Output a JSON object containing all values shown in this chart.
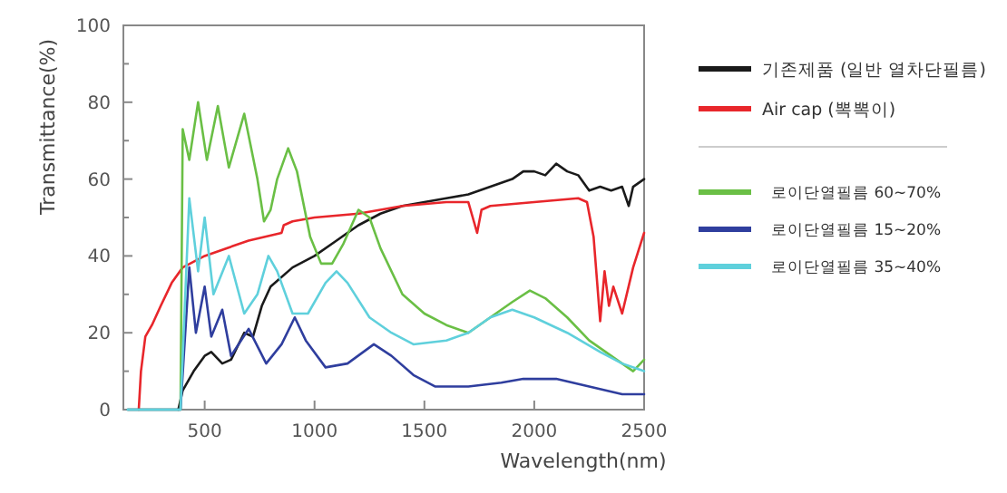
{
  "chart_data": {
    "type": "line",
    "xlabel": "Wavelength(nm)",
    "ylabel": "Transmittance(%)",
    "xlim": [
      130,
      2500
    ],
    "xticks": [
      500,
      1000,
      1500,
      2000,
      2500
    ],
    "ylim": [
      0,
      100
    ],
    "yticks": [
      0,
      {
        "value": 10,
        "label": null
      },
      20,
      {
        "value": 30,
        "label": null
      },
      40,
      {
        "value": 50,
        "label": null
      },
      60,
      {
        "value": 70,
        "label": null
      },
      80,
      {
        "value": 90,
        "label": null
      },
      100
    ],
    "grid": false,
    "legend": "right",
    "line_style": "solid",
    "series": [
      {
        "name": "기존제품 (일반 열차단필름)",
        "color": "#1a1a1a",
        "x": [
          380,
          400,
          450,
          500,
          530,
          580,
          620,
          680,
          720,
          760,
          800,
          900,
          1000,
          1100,
          1200,
          1300,
          1400,
          1500,
          1600,
          1700,
          1800,
          1900,
          1950,
          2000,
          2050,
          2100,
          2150,
          2200,
          2250,
          2300,
          2350,
          2400,
          2430,
          2450,
          2500
        ],
        "values": [
          0,
          5,
          10,
          14,
          15,
          12,
          13,
          20,
          19,
          27,
          32,
          37,
          40,
          44,
          48,
          51,
          53,
          54,
          55,
          56,
          58,
          60,
          62,
          62,
          61,
          64,
          62,
          61,
          57,
          58,
          57,
          58,
          53,
          58,
          60
        ]
      },
      {
        "name": "Air cap (뽁뽁이)",
        "color": "#e8262b",
        "x": [
          200,
          210,
          230,
          260,
          300,
          350,
          400,
          500,
          600,
          700,
          850,
          860,
          900,
          1000,
          1200,
          1400,
          1600,
          1700,
          1720,
          1740,
          1760,
          1800,
          2000,
          2200,
          2240,
          2270,
          2300,
          2320,
          2340,
          2360,
          2400,
          2450,
          2500
        ],
        "values": [
          0,
          10,
          19,
          22,
          27,
          33,
          37,
          40,
          42,
          44,
          46,
          48,
          49,
          50,
          51,
          53,
          54,
          54,
          50,
          46,
          52,
          53,
          54,
          55,
          54,
          45,
          23,
          36,
          27,
          32,
          25,
          37,
          46
        ]
      },
      {
        "name": "로이단열필름 60~70%",
        "color": "#6abf45",
        "x": [
          150,
          390,
          400,
          430,
          470,
          510,
          560,
          610,
          680,
          740,
          770,
          800,
          830,
          880,
          920,
          980,
          1030,
          1080,
          1130,
          1200,
          1250,
          1300,
          1400,
          1500,
          1600,
          1700,
          1800,
          1900,
          1980,
          2050,
          2150,
          2250,
          2350,
          2450,
          2500
        ],
        "values": [
          0,
          0,
          73,
          65,
          80,
          65,
          79,
          63,
          77,
          60,
          49,
          52,
          60,
          68,
          62,
          45,
          38,
          38,
          43,
          52,
          50,
          42,
          30,
          25,
          22,
          20,
          24,
          28,
          31,
          29,
          24,
          18,
          14,
          10,
          13
        ]
      },
      {
        "name": "로이단열필름 15~20%",
        "color": "#2f3e9e",
        "x": [
          150,
          390,
          430,
          460,
          500,
          530,
          580,
          620,
          700,
          780,
          850,
          910,
          960,
          1050,
          1150,
          1270,
          1350,
          1450,
          1550,
          1700,
          1850,
          1950,
          2000,
          2100,
          2250,
          2400,
          2500
        ],
        "values": [
          0,
          0,
          37,
          20,
          32,
          19,
          26,
          14,
          21,
          12,
          17,
          24,
          18,
          11,
          12,
          17,
          14,
          9,
          6,
          6,
          7,
          8,
          8,
          8,
          6,
          4,
          4
        ]
      },
      {
        "name": "로이단열필름 35~40%",
        "color": "#5fd0dc",
        "x": [
          150,
          390,
          430,
          470,
          500,
          540,
          610,
          680,
          740,
          790,
          830,
          900,
          970,
          1050,
          1100,
          1150,
          1250,
          1350,
          1450,
          1600,
          1700,
          1800,
          1900,
          2000,
          2150,
          2300,
          2400,
          2500
        ],
        "values": [
          0,
          0,
          55,
          36,
          50,
          30,
          40,
          25,
          30,
          40,
          36,
          25,
          25,
          33,
          36,
          33,
          24,
          20,
          17,
          18,
          20,
          24,
          26,
          24,
          20,
          15,
          12,
          10
        ]
      }
    ]
  }
}
